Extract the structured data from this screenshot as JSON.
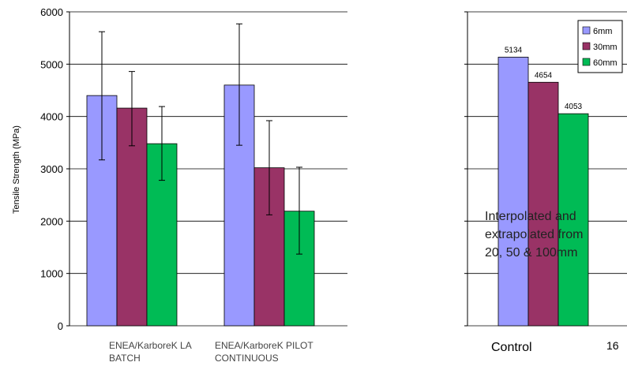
{
  "chart_data": [
    {
      "type": "bar",
      "ylabel": "Tensile Strength (MPa)",
      "ylim": [
        0,
        6000
      ],
      "yticks": [
        0,
        1000,
        2000,
        3000,
        4000,
        5000,
        6000
      ],
      "categories": [
        [
          "ENEA/KarboreK LA",
          "BATCH"
        ],
        [
          "ENEA/KarboreK PILOT",
          "CONTINUOUS"
        ]
      ],
      "series": [
        {
          "name": "6mm",
          "color": "#9999ff",
          "values": [
            4400,
            4600
          ],
          "err_low": [
            3170,
            3450
          ],
          "err_high": [
            5620,
            5770
          ]
        },
        {
          "name": "30mm",
          "color": "#993366",
          "values": [
            4160,
            3020
          ],
          "err_low": [
            3440,
            2120
          ],
          "err_high": [
            4860,
            3920
          ]
        },
        {
          "name": "60mm",
          "color": "#00bb55",
          "values": [
            3480,
            2190
          ],
          "err_low": [
            2780,
            1370
          ],
          "err_high": [
            4190,
            3030
          ]
        }
      ],
      "grid": true,
      "legend": "none"
    },
    {
      "type": "bar",
      "ylim": [
        0,
        6000
      ],
      "categories": [
        "Control"
      ],
      "series": [
        {
          "name": "6mm",
          "color": "#9999ff",
          "values": [
            5134
          ],
          "labels": [
            "5134"
          ]
        },
        {
          "name": "30mm",
          "color": "#993366",
          "values": [
            4654
          ],
          "labels": [
            "4654"
          ]
        },
        {
          "name": "60mm",
          "color": "#00bb55",
          "values": [
            4053
          ],
          "labels": [
            "4053"
          ]
        }
      ],
      "annotation": [
        "Interpolated and",
        "extrapolated from",
        "20, 50 & 100mm"
      ],
      "grid": true,
      "legend": "top-right"
    }
  ],
  "page_number": "16"
}
